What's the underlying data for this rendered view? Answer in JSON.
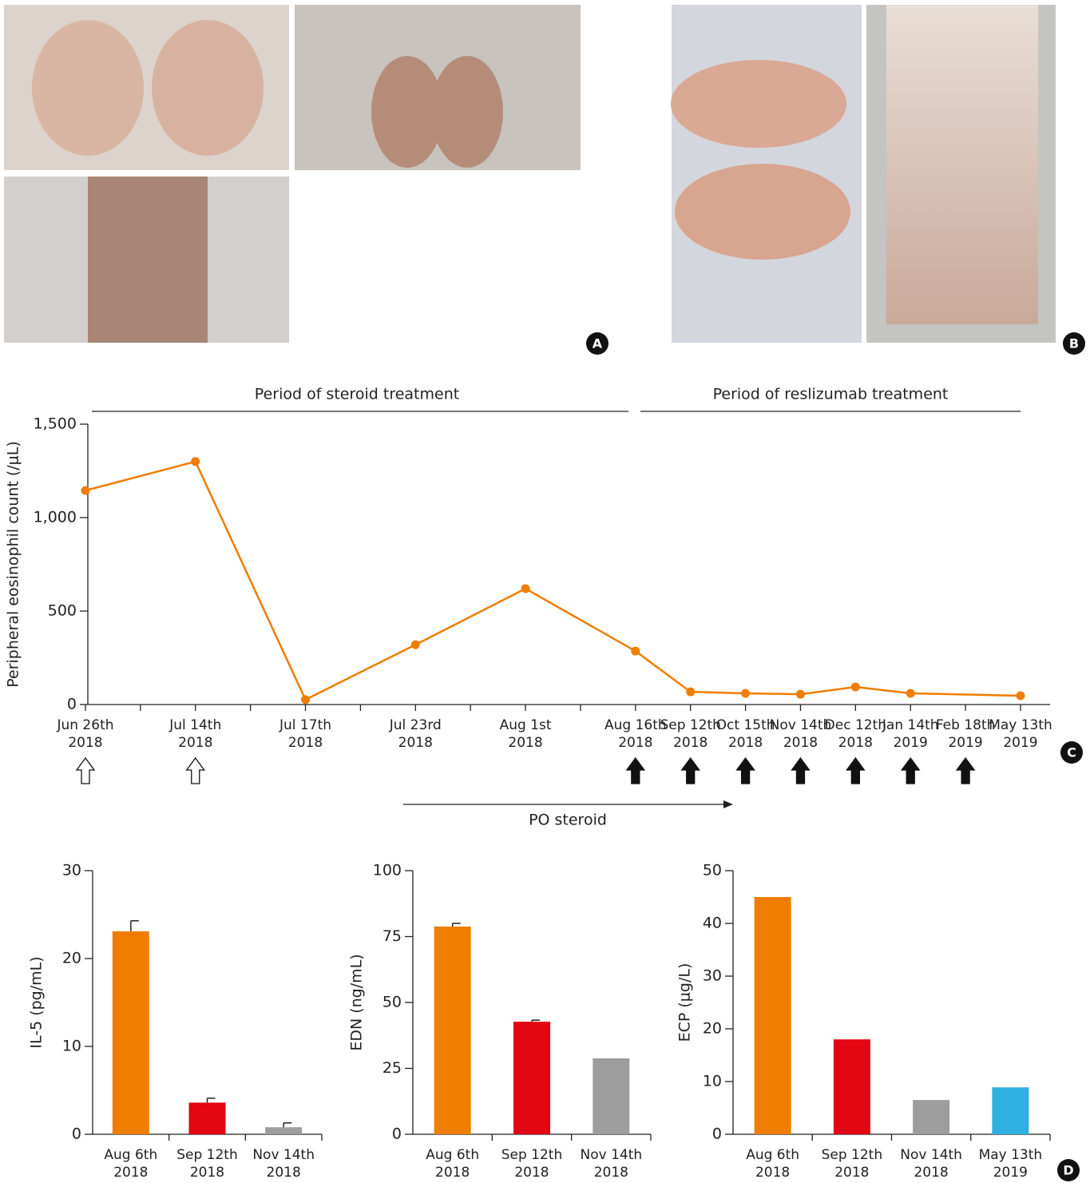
{
  "panel_labels": [
    "A",
    "B",
    "C",
    "D"
  ],
  "chart_data": [
    {
      "type": "line",
      "periods": [
        "Period of steroid treatment",
        "Period of reslizumab treatment"
      ],
      "annotation": "PO steroid",
      "y_label": "Peripheral eosinophil count (/μL)",
      "categories": [
        [
          "Jun 26th",
          "2018"
        ],
        null,
        [
          "Jul 14th",
          "2018"
        ],
        null,
        [
          "Jul 17th",
          "2018"
        ],
        null,
        [
          "Jul 23rd",
          "2018"
        ],
        null,
        [
          "Aug 1st",
          "2018"
        ],
        null,
        [
          "Aug 16th",
          "2018"
        ],
        [
          "Sep 12th",
          "2018"
        ],
        [
          "Oct 15th",
          "2018"
        ],
        [
          "Nov 14th",
          "2018"
        ],
        [
          "Dec 12th",
          "2018"
        ],
        [
          "Jan 14th",
          "2019"
        ],
        [
          "Feb 18th",
          "2019"
        ],
        [
          "May 13th",
          "2019"
        ]
      ],
      "values": [
        1145,
        null,
        1300,
        null,
        26,
        null,
        320,
        null,
        620,
        null,
        286,
        68,
        60,
        55,
        94,
        60,
        null,
        47
      ],
      "color": "#ef7d00",
      "connect_gaps": true,
      "ylim": [
        0,
        1500
      ],
      "yticks": [
        0,
        500,
        {
          "value": 1000,
          "label": "1,000"
        },
        {
          "value": 1500,
          "label": "1,500"
        }
      ]
    },
    {
      "type": "bar",
      "y_label": "IL-5 (pg/mL)",
      "categories": [
        [
          "Aug 6th",
          "2018"
        ],
        [
          "Sep 12th",
          "2018"
        ],
        [
          "Nov 14th",
          "2018"
        ]
      ],
      "values": [
        23.1,
        3.6,
        0.8
      ],
      "errors": [
        1.2,
        0.5,
        0.5
      ],
      "colors": [
        "#ef7d00",
        "#e30613",
        "#9d9d9d"
      ],
      "ylim": [
        0,
        30
      ],
      "yticks": [
        0,
        10,
        20,
        30
      ]
    },
    {
      "type": "bar",
      "y_label": "EDN (ng/mL)",
      "categories": [
        [
          "Aug 6th",
          "2018"
        ],
        [
          "Sep 12th",
          "2018"
        ],
        [
          "Nov 14th",
          "2018"
        ]
      ],
      "values": [
        78.8,
        42.7,
        28.8
      ],
      "errors": [
        1.2,
        0.6,
        null
      ],
      "colors": [
        "#ef7d00",
        "#e30613",
        "#9d9d9d"
      ],
      "ylim": [
        0,
        100
      ],
      "yticks": [
        0,
        25,
        50,
        75,
        100
      ]
    },
    {
      "type": "bar",
      "y_label": "ECP (μg/L)",
      "categories": [
        [
          "Aug 6th",
          "2018"
        ],
        [
          "Sep 12th",
          "2018"
        ],
        [
          "Nov 14th",
          "2018"
        ],
        [
          "May 13th",
          "2019"
        ]
      ],
      "values": [
        45,
        18,
        6.5,
        8.9
      ],
      "colors": [
        "#ef7d00",
        "#e30613",
        "#9d9d9d",
        "#2eb1e0"
      ],
      "ylim": [
        0,
        50
      ],
      "yticks": [
        0,
        10,
        20,
        30,
        40,
        50
      ]
    }
  ]
}
